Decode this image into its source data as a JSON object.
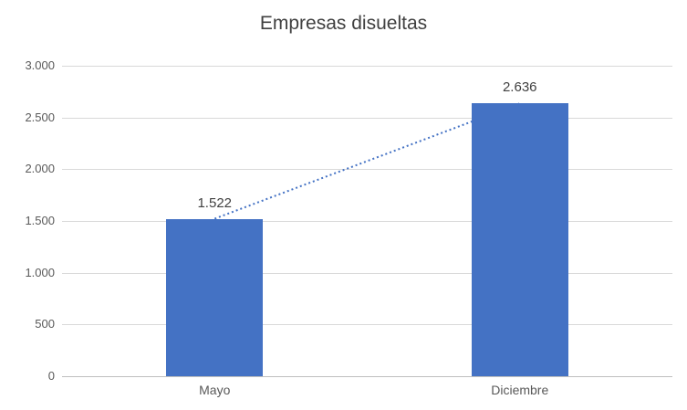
{
  "chart_data": {
    "type": "bar",
    "title": "Empresas disueltas",
    "categories": [
      "Mayo",
      "Diciembre"
    ],
    "values": [
      1522,
      2636
    ],
    "data_labels": [
      "1.522",
      "2.636"
    ],
    "y_ticks": [
      "3.000",
      "2.500",
      "2.000",
      "1.500",
      "1.000",
      "500",
      "0"
    ],
    "y_tick_values": [
      3000,
      2500,
      2000,
      1500,
      1000,
      500,
      0
    ],
    "ylim": [
      0,
      3000
    ],
    "grid": true,
    "legend": "none",
    "has_trendline": true,
    "bar_color": "#4472C4",
    "trendline_color": "#4472C4",
    "gridline_color": "#D9D9D9",
    "axis_line_color": "#BFBFBF",
    "axis_text_color": "#595959",
    "title_color": "#404040",
    "label_text_color": "#404040"
  }
}
